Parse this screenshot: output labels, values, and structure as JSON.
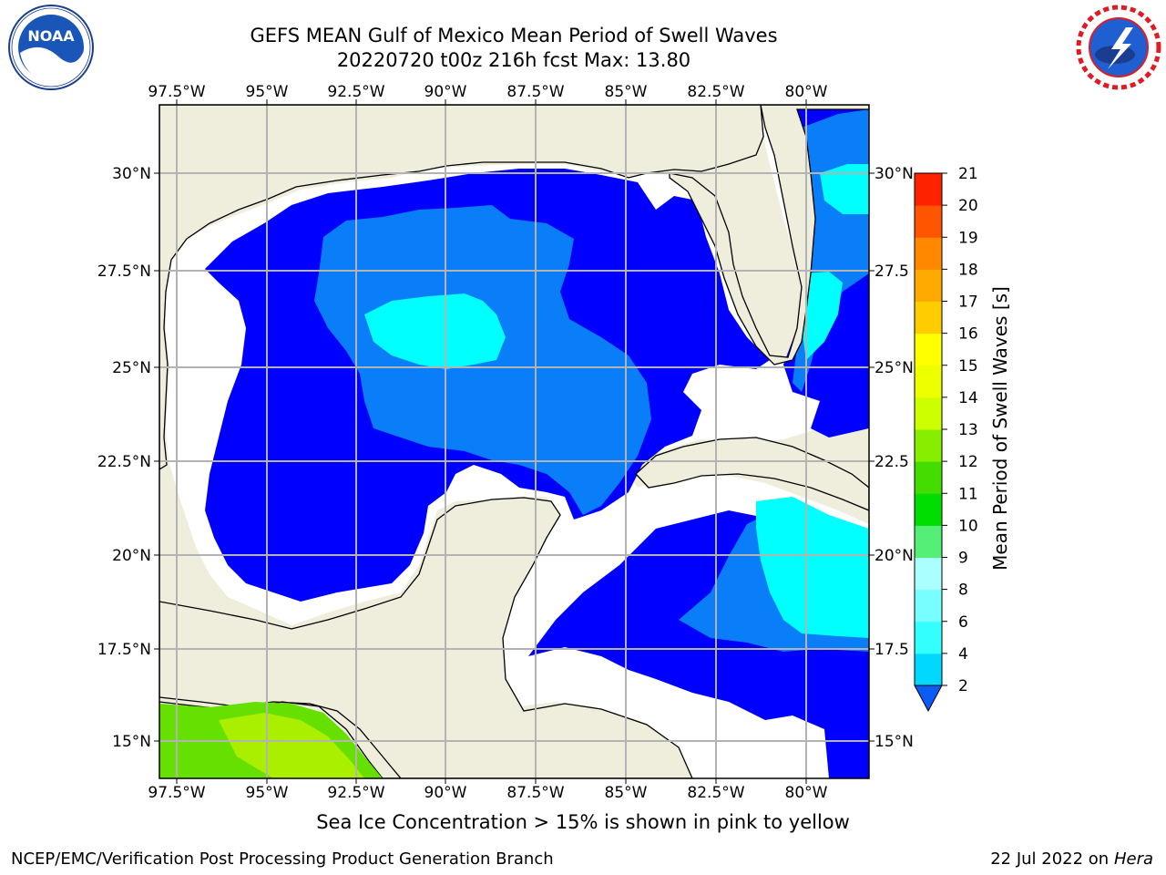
{
  "header": {
    "title_line1": "GEFS MEAN Gulf of Mexico Mean Period of Swell Waves",
    "title_line2": "20220720 t00z 216h fcst   Max: 13.80"
  },
  "logos": {
    "left": {
      "name": "noaa-logo",
      "text": "NOAA",
      "ring_text": "NATIONAL OCEANIC AND ATMOSPHERIC ADMINISTRATION · U.S. DEPARTMENT OF COMMERCE"
    },
    "right": {
      "name": "nws-logo",
      "ring_text": "NATIONAL WEATHER SERVICE"
    }
  },
  "map": {
    "lon_labels": [
      "97.5°W",
      "95°W",
      "92.5°W",
      "90°W",
      "87.5°W",
      "85°W",
      "82.5°W",
      "80°W"
    ],
    "lat_labels_left": [
      "30°N",
      "27.5°N",
      "25°N",
      "22.5°N",
      "20°N",
      "17.5°N",
      "15°N"
    ],
    "lat_labels_right": [
      "30°N",
      "27.5",
      "25°N",
      "22.5",
      "20°N",
      "17.5",
      "15°N"
    ],
    "colors": {
      "land": "#efeddc",
      "sea_low": "#0000ff",
      "sea_mid": "#0a7df8",
      "sea_high": "#00ffff",
      "no_data": "#ffffff",
      "grid": "#b3b3b3"
    }
  },
  "colorbar": {
    "label": "Mean Period of Swell Waves [s]",
    "ticks": [
      "2",
      "4",
      "6",
      "8",
      "9",
      "10",
      "11",
      "12",
      "13",
      "14",
      "15",
      "16",
      "17",
      "18",
      "19",
      "20",
      "21"
    ],
    "colors": [
      "#0a5cf5",
      "#00d8ff",
      "#33ffff",
      "#77ffff",
      "#aaffff",
      "#55ee77",
      "#00dd00",
      "#44dd00",
      "#88ee00",
      "#ccff00",
      "#eeff00",
      "#ffff00",
      "#ffcc00",
      "#ffaa00",
      "#ff8800",
      "#ff5500",
      "#ff2200",
      "#ff0000"
    ]
  },
  "footer": {
    "note": "Sea Ice Concentration > 15% is shown in pink to yellow",
    "left": "NCEP/EMC/Verification Post Processing Product Generation Branch",
    "right_date": "22 Jul 2022 on ",
    "right_host": "Hera"
  }
}
